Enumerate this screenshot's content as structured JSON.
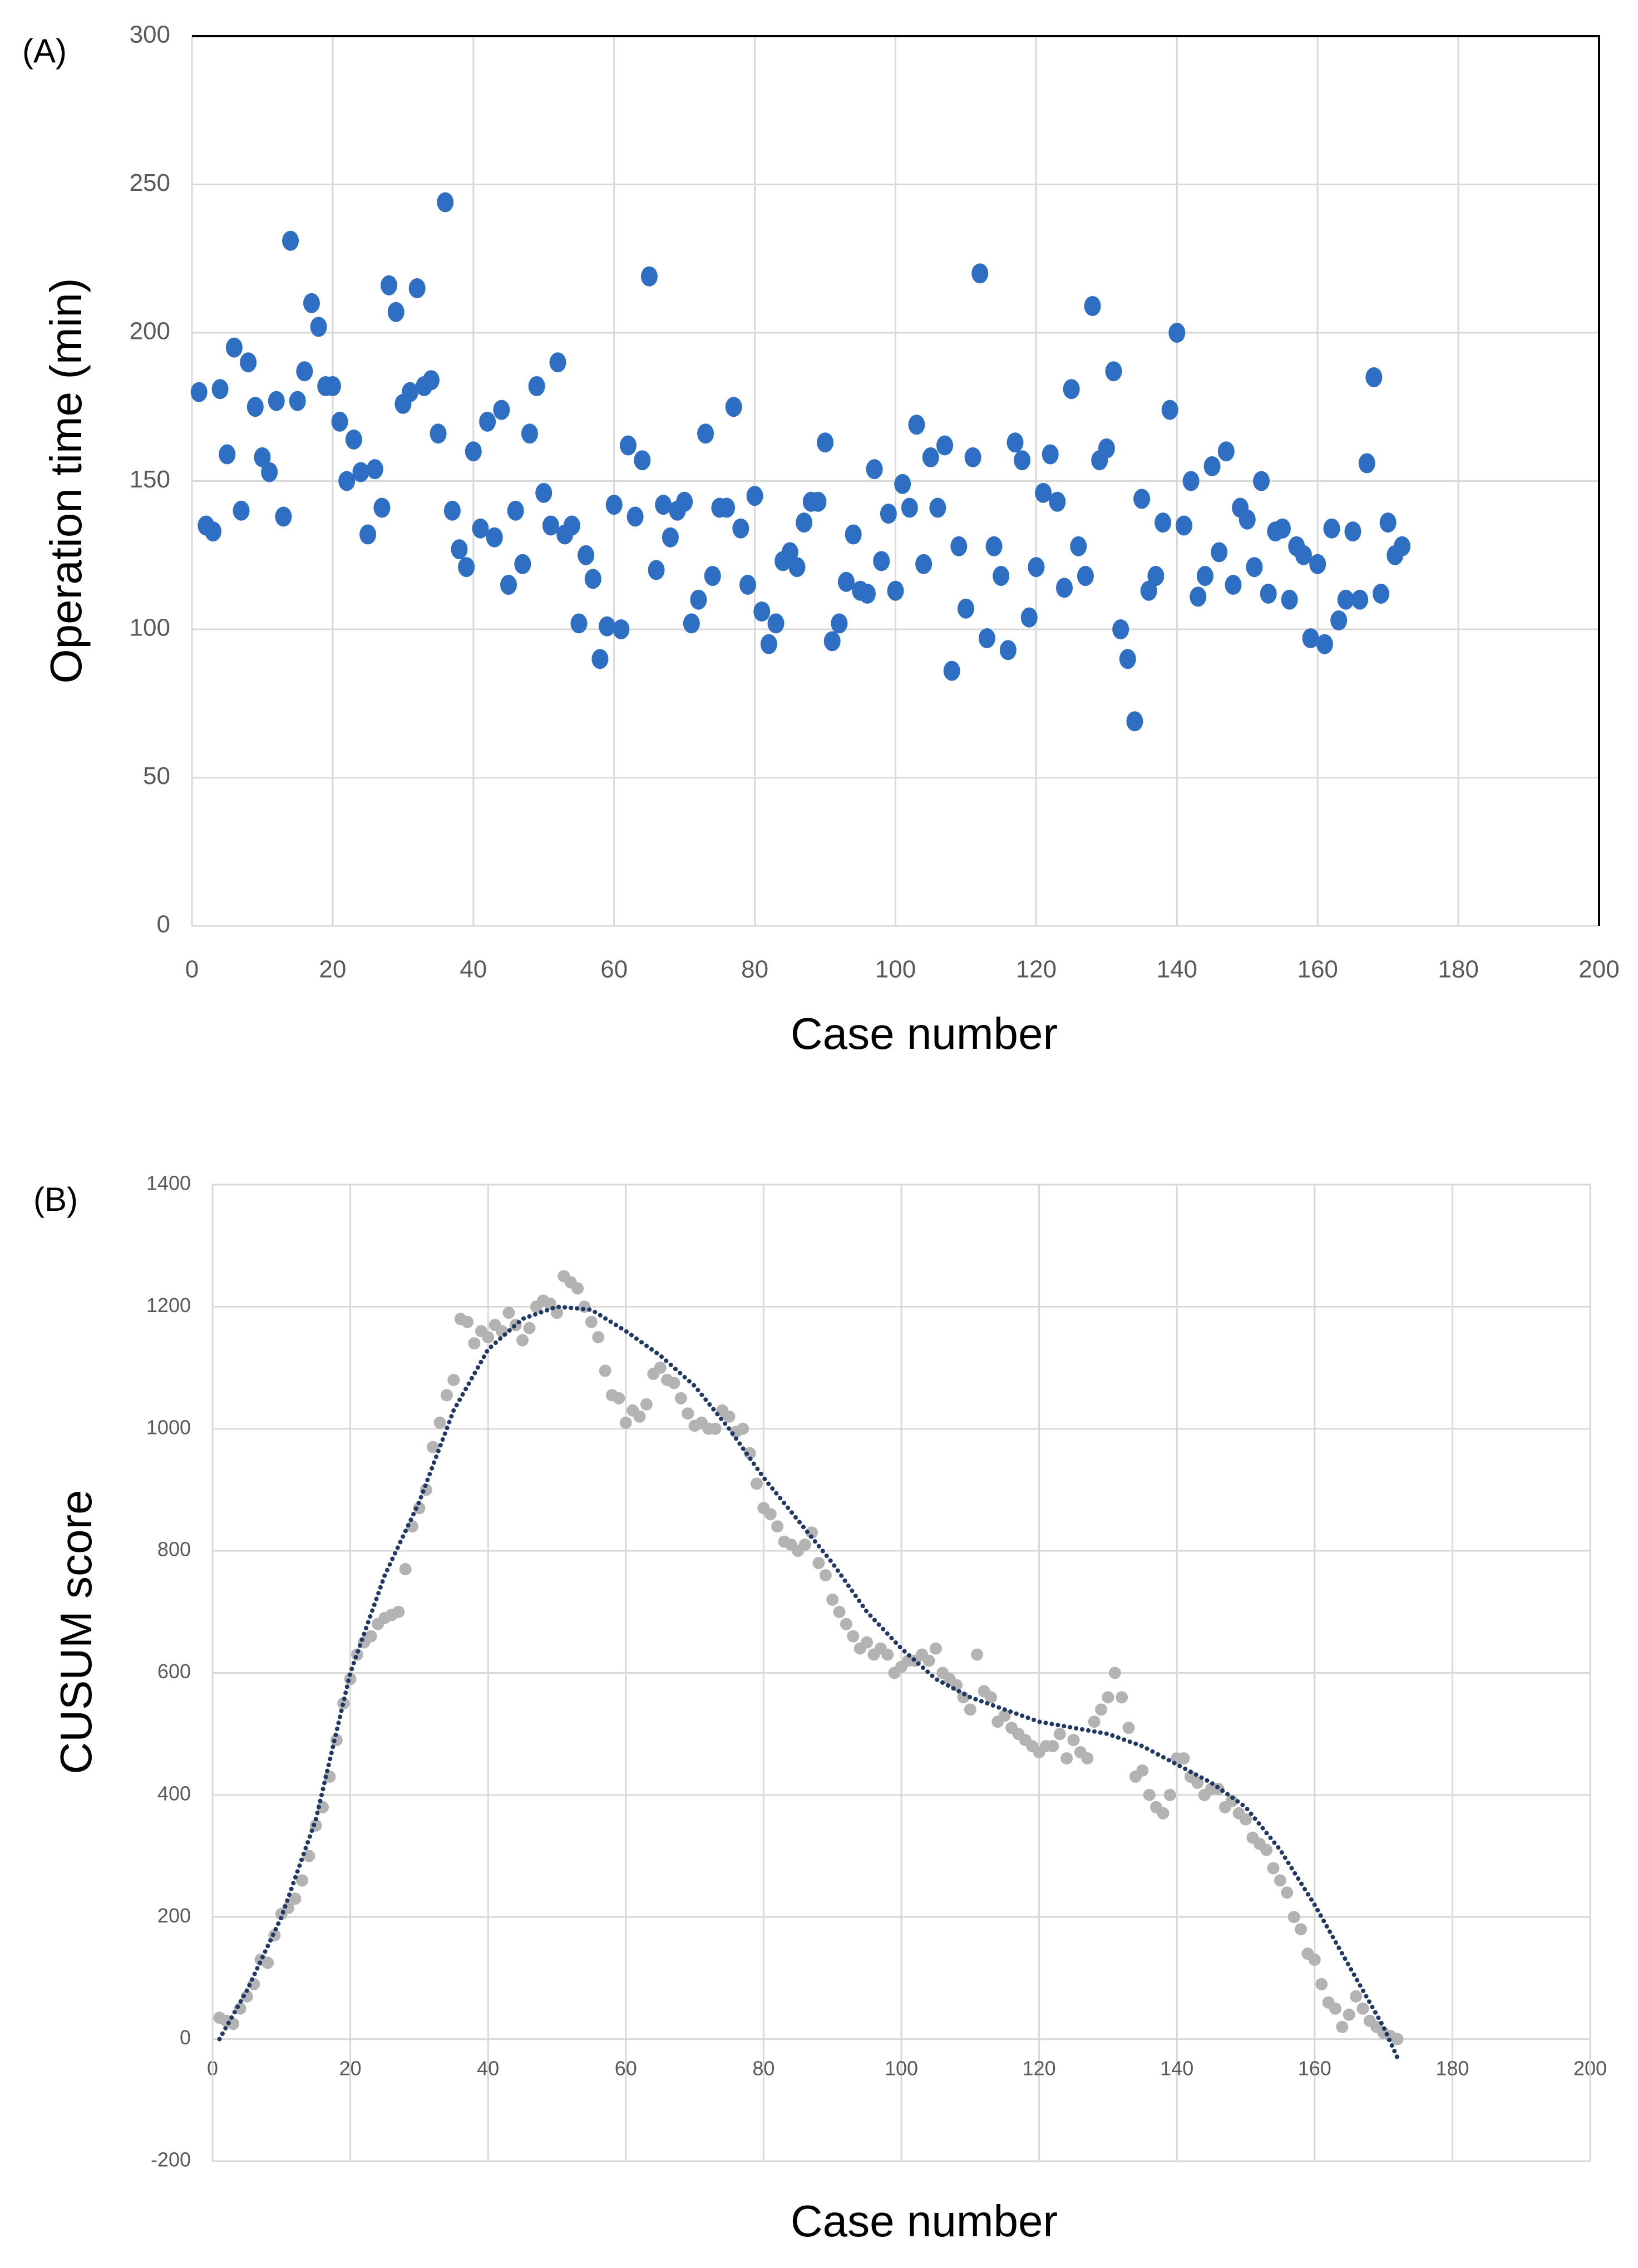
{
  "chart_data": [
    {
      "type": "scatter",
      "panel_label": "(A)",
      "x_label": "Case number",
      "y_label": "Operation time (min)",
      "color": "#2e6fc4",
      "grid": true,
      "xlim": [
        0,
        200
      ],
      "xticks": [
        0,
        20,
        40,
        60,
        80,
        100,
        120,
        140,
        160,
        180,
        200
      ],
      "ylim": [
        0,
        300
      ],
      "yticks": [
        0,
        50,
        100,
        150,
        200,
        250,
        300
      ],
      "x": [
        1,
        2,
        3,
        4,
        5,
        6,
        7,
        8,
        9,
        10,
        11,
        12,
        13,
        14,
        15,
        16,
        17,
        18,
        19,
        20,
        21,
        22,
        23,
        24,
        25,
        26,
        27,
        28,
        29,
        30,
        31,
        32,
        33,
        34,
        35,
        36,
        37,
        38,
        39,
        40,
        41,
        42,
        43,
        44,
        45,
        46,
        47,
        48,
        49,
        50,
        51,
        52,
        53,
        54,
        55,
        56,
        57,
        58,
        59,
        60,
        61,
        62,
        63,
        64,
        65,
        66,
        67,
        68,
        69,
        70,
        71,
        72,
        73,
        74,
        75,
        76,
        77,
        78,
        79,
        80,
        81,
        82,
        83,
        84,
        85,
        86,
        87,
        88,
        89,
        90,
        91,
        92,
        93,
        94,
        95,
        96,
        97,
        98,
        99,
        100,
        101,
        102,
        103,
        104,
        105,
        106,
        107,
        108,
        109,
        110,
        111,
        112,
        113,
        114,
        115,
        116,
        117,
        118,
        119,
        120,
        121,
        122,
        123,
        124,
        125,
        126,
        127,
        128,
        129,
        130,
        131,
        132,
        133,
        134,
        135,
        136,
        137,
        138,
        139,
        140,
        141,
        142,
        143,
        144,
        145,
        146,
        147,
        148,
        149,
        150,
        151,
        152,
        153,
        154,
        155,
        156,
        157,
        158,
        159,
        160,
        161,
        162,
        163,
        164,
        165,
        166,
        167,
        168,
        169,
        170,
        171,
        172
      ],
      "values": [
        180,
        135,
        133,
        181,
        159,
        195,
        140,
        190,
        175,
        158,
        153,
        177,
        138,
        231,
        177,
        187,
        210,
        202,
        182,
        182,
        170,
        150,
        164,
        153,
        132,
        154,
        141,
        216,
        207,
        176,
        180,
        215,
        182,
        184,
        166,
        244,
        140,
        127,
        121,
        160,
        134,
        170,
        131,
        174,
        115,
        140,
        122,
        166,
        182,
        146,
        135,
        190,
        132,
        135,
        102,
        125,
        117,
        90,
        101,
        142,
        100,
        162,
        138,
        157,
        219,
        120,
        142,
        131,
        140,
        143,
        102,
        110,
        166,
        118,
        141,
        141,
        175,
        134,
        115,
        145,
        106,
        95,
        102,
        123,
        126,
        121,
        136,
        143,
        143,
        163,
        96,
        102,
        116,
        132,
        113,
        112,
        154,
        123,
        139,
        113,
        149,
        141,
        169,
        122,
        158,
        141,
        162,
        86,
        128,
        107,
        158,
        220,
        97,
        128,
        118,
        93,
        163,
        157,
        104,
        121,
        146,
        159,
        143,
        114,
        181,
        128,
        118,
        209,
        157,
        161,
        187,
        100,
        90,
        69,
        144,
        113,
        118,
        136,
        174,
        200,
        135,
        150,
        111,
        118,
        155,
        126,
        160,
        115,
        141,
        137,
        121,
        150,
        112,
        133,
        134,
        110,
        128,
        125,
        97,
        122,
        95,
        134,
        103,
        110,
        133,
        110,
        156,
        185,
        112,
        136,
        125,
        128
      ]
    },
    {
      "type": "scatter",
      "panel_label": "(B)",
      "x_label": "Case number",
      "y_label": "CUSUM score",
      "color": "#b3b3b3",
      "grid": true,
      "xlim": [
        0,
        200
      ],
      "xticks": [
        0,
        20,
        40,
        60,
        80,
        100,
        120,
        140,
        160,
        180,
        200
      ],
      "ylim": [
        -200,
        1400
      ],
      "yticks": [
        -200,
        0,
        200,
        400,
        600,
        800,
        1000,
        1200,
        1400
      ],
      "x": [
        1,
        2,
        3,
        4,
        5,
        6,
        7,
        8,
        9,
        10,
        11,
        12,
        13,
        14,
        15,
        16,
        17,
        18,
        19,
        20,
        21,
        22,
        23,
        24,
        25,
        26,
        27,
        28,
        29,
        30,
        31,
        32,
        33,
        34,
        35,
        36,
        37,
        38,
        39,
        40,
        41,
        42,
        43,
        44,
        45,
        46,
        47,
        48,
        49,
        50,
        51,
        52,
        53,
        54,
        55,
        56,
        57,
        58,
        59,
        60,
        61,
        62,
        63,
        64,
        65,
        66,
        67,
        68,
        69,
        70,
        71,
        72,
        73,
        74,
        75,
        76,
        77,
        78,
        79,
        80,
        81,
        82,
        83,
        84,
        85,
        86,
        87,
        88,
        89,
        90,
        91,
        92,
        93,
        94,
        95,
        96,
        97,
        98,
        99,
        100,
        101,
        102,
        103,
        104,
        105,
        106,
        107,
        108,
        109,
        110,
        111,
        112,
        113,
        114,
        115,
        116,
        117,
        118,
        119,
        120,
        121,
        122,
        123,
        124,
        125,
        126,
        127,
        128,
        129,
        130,
        131,
        132,
        133,
        134,
        135,
        136,
        137,
        138,
        139,
        140,
        141,
        142,
        143,
        144,
        145,
        146,
        147,
        148,
        149,
        150,
        151,
        152,
        153,
        154,
        155,
        156,
        157,
        158,
        159,
        160,
        161,
        162,
        163,
        164,
        165,
        166,
        167,
        168,
        169,
        170,
        171,
        172
      ],
      "values": [
        35,
        30,
        25,
        50,
        70,
        90,
        130,
        125,
        170,
        205,
        215,
        230,
        260,
        300,
        350,
        380,
        430,
        490,
        550,
        590,
        630,
        650,
        660,
        680,
        690,
        695,
        700,
        770,
        840,
        870,
        900,
        970,
        1010,
        1055,
        1080,
        1180,
        1175,
        1140,
        1160,
        1150,
        1170,
        1160,
        1190,
        1170,
        1145,
        1165,
        1200,
        1210,
        1205,
        1190,
        1250,
        1240,
        1230,
        1200,
        1175,
        1150,
        1095,
        1055,
        1050,
        1010,
        1030,
        1020,
        1040,
        1090,
        1100,
        1080,
        1075,
        1050,
        1025,
        1005,
        1010,
        1000,
        1000,
        1030,
        1020,
        995,
        1000,
        960,
        910,
        870,
        860,
        840,
        815,
        810,
        800,
        810,
        830,
        780,
        760,
        720,
        700,
        680,
        660,
        640,
        650,
        630,
        640,
        630,
        600,
        610,
        620,
        620,
        630,
        620,
        640,
        600,
        590,
        580,
        560,
        540,
        630,
        570,
        560,
        520,
        530,
        510,
        500,
        490,
        480,
        470,
        480,
        480,
        500,
        460,
        490,
        470,
        460,
        520,
        540,
        560,
        600,
        560,
        510,
        430,
        440,
        400,
        380,
        370,
        400,
        460,
        460,
        430,
        420,
        400,
        410,
        410,
        380,
        390,
        370,
        360,
        330,
        320,
        310,
        280,
        260,
        240,
        200,
        180,
        140,
        130,
        90,
        60,
        50,
        20,
        40,
        70,
        50,
        30,
        20,
        10,
        5,
        0
      ],
      "trendline": {
        "color": "#1f3864",
        "style": "dotted",
        "x": [
          1,
          5,
          10,
          15,
          20,
          25,
          30,
          35,
          40,
          45,
          50,
          55,
          60,
          65,
          70,
          75,
          80,
          85,
          90,
          95,
          100,
          105,
          110,
          115,
          120,
          125,
          130,
          135,
          140,
          145,
          150,
          155,
          160,
          165,
          170,
          172
        ],
        "values": [
          0,
          80,
          200,
          360,
          600,
          760,
          880,
          1030,
          1130,
          1180,
          1200,
          1195,
          1160,
          1120,
          1070,
          1000,
          920,
          850,
          780,
          700,
          640,
          590,
          560,
          540,
          520,
          510,
          500,
          480,
          450,
          420,
          380,
          310,
          220,
          120,
          20,
          -30
        ]
      }
    }
  ]
}
